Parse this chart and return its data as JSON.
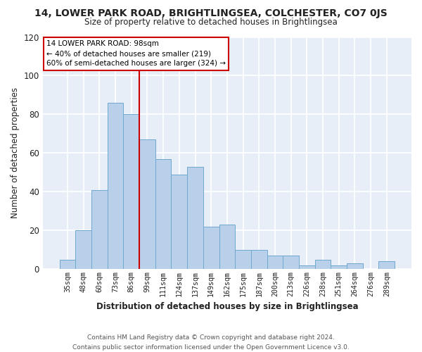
{
  "title": "14, LOWER PARK ROAD, BRIGHTLINGSEA, COLCHESTER, CO7 0JS",
  "subtitle": "Size of property relative to detached houses in Brightlingsea",
  "xlabel": "Distribution of detached houses by size in Brightlingsea",
  "ylabel": "Number of detached properties",
  "footer_line1": "Contains HM Land Registry data © Crown copyright and database right 2024.",
  "footer_line2": "Contains public sector information licensed under the Open Government Licence v3.0.",
  "categories": [
    "35sqm",
    "48sqm",
    "60sqm",
    "73sqm",
    "86sqm",
    "99sqm",
    "111sqm",
    "124sqm",
    "137sqm",
    "149sqm",
    "162sqm",
    "175sqm",
    "187sqm",
    "200sqm",
    "213sqm",
    "226sqm",
    "238sqm",
    "251sqm",
    "264sqm",
    "276sqm",
    "289sqm"
  ],
  "values": [
    5,
    20,
    41,
    86,
    80,
    67,
    57,
    49,
    53,
    22,
    23,
    10,
    10,
    7,
    7,
    2,
    5,
    2,
    3,
    0,
    4
  ],
  "bar_color": "#b8d0ea",
  "bar_edge_color": "#6fa8d0",
  "vline_x_index": 5,
  "vline_color": "#cc0000",
  "vline_label": "14 LOWER PARK ROAD: 98sqm",
  "annotation_line2": "← 40% of detached houses are smaller (219)",
  "annotation_line3": "60% of semi-detached houses are larger (324) →",
  "annotation_box_edge_color": "#cc0000",
  "ylim": [
    0,
    120
  ],
  "background_color": "#ffffff",
  "plot_bg_color": "#e8eef8"
}
